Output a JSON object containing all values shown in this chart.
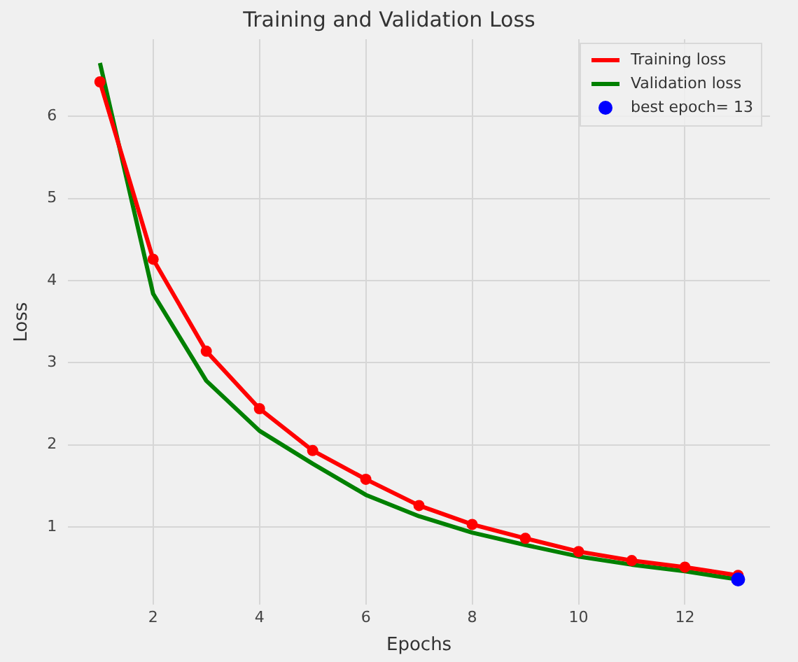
{
  "chart_data": {
    "type": "line",
    "title": "Training and Validation Loss",
    "xlabel": "Epochs",
    "ylabel": "Loss",
    "x": [
      1,
      2,
      3,
      4,
      5,
      6,
      7,
      8,
      9,
      10,
      11,
      12,
      13
    ],
    "series": [
      {
        "name": "Training loss",
        "color": "#ff0000",
        "marker": "circle",
        "values": [
          6.42,
          4.26,
          3.14,
          2.44,
          1.93,
          1.58,
          1.26,
          1.03,
          0.86,
          0.7,
          0.59,
          0.51,
          0.41
        ]
      },
      {
        "name": "Validation loss",
        "color": "#008000",
        "marker": "none",
        "values": [
          6.65,
          3.84,
          2.78,
          2.17,
          1.77,
          1.39,
          1.13,
          0.93,
          0.78,
          0.64,
          0.54,
          0.46,
          0.36
        ]
      },
      {
        "name": "best epoch= 13",
        "type": "scatter",
        "color": "#0000ff",
        "marker": "circle",
        "x": [
          13
        ],
        "values": [
          0.36
        ]
      }
    ],
    "xlim": [
      0.4,
      13.6
    ],
    "xticks": [
      2,
      4,
      6,
      8,
      10,
      12
    ],
    "ylim": [
      0.05,
      6.94
    ],
    "yticks": [
      1,
      2,
      3,
      4,
      5,
      6
    ],
    "grid": true,
    "legend": "top right",
    "line_style": "solid"
  }
}
